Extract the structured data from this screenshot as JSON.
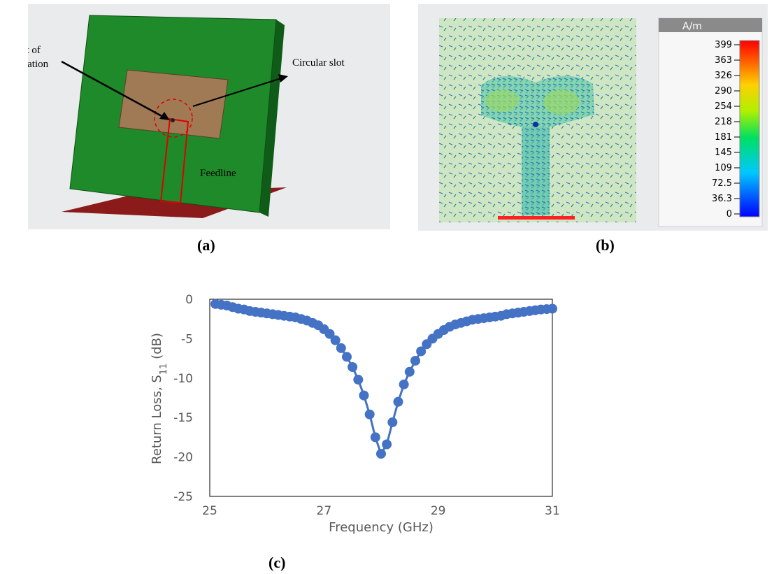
{
  "panel_a": {
    "annotations": {
      "excitation_line1": "Point of",
      "excitation_line2": "excitation",
      "slot": "Circular slot",
      "feedline": "Feedline"
    },
    "colors": {
      "substrate": "#1e8a2a",
      "patch": "#a07a55",
      "ground": "#8b1a1a",
      "outline": "#e00000"
    },
    "caption": "(a)"
  },
  "panel_b": {
    "colorbar": {
      "unit": "A/m",
      "ticks": [
        "399",
        "363",
        "326",
        "290",
        "254",
        "218",
        "181",
        "145",
        "109",
        "72.5",
        "36.3",
        "0"
      ]
    },
    "caption": "(b)"
  },
  "chart_data": {
    "type": "line",
    "xlabel": "Frequency (GHz)",
    "ylabel_main": "Return Loss, S",
    "ylabel_sub": "11",
    "ylabel_tail": " (dB)",
    "xlim": [
      25,
      31
    ],
    "ylim": [
      -25,
      0
    ],
    "xticks": [
      "25",
      "27",
      "29",
      "31"
    ],
    "yticks": [
      "0",
      "-5",
      "-10",
      "-15",
      "-20",
      "-25"
    ],
    "grid": "horizontal",
    "legend": "none",
    "series": [
      {
        "color": "#4472c4",
        "x": [
          25.1,
          25.2,
          25.3,
          25.4,
          25.5,
          25.6,
          25.7,
          25.8,
          25.9,
          26.0,
          26.1,
          26.2,
          26.3,
          26.4,
          26.5,
          26.6,
          26.7,
          26.8,
          26.9,
          27.0,
          27.1,
          27.2,
          27.3,
          27.4,
          27.5,
          27.6,
          27.7,
          27.8,
          27.9,
          28.0,
          28.1,
          28.2,
          28.3,
          28.4,
          28.5,
          28.6,
          28.7,
          28.8,
          28.9,
          29.0,
          29.1,
          29.2,
          29.3,
          29.4,
          29.5,
          29.6,
          29.7,
          29.8,
          29.9,
          30.0,
          30.1,
          30.2,
          30.3,
          30.4,
          30.5,
          30.6,
          30.7,
          30.8,
          30.9,
          31.0
        ],
        "y": [
          -0.6,
          -0.7,
          -0.8,
          -1.0,
          -1.2,
          -1.3,
          -1.5,
          -1.6,
          -1.7,
          -1.8,
          -1.9,
          -2.0,
          -2.1,
          -2.2,
          -2.3,
          -2.5,
          -2.7,
          -3.0,
          -3.3,
          -3.8,
          -4.4,
          -5.2,
          -6.2,
          -7.3,
          -8.6,
          -10.2,
          -12.2,
          -14.6,
          -17.5,
          -19.6,
          -18.4,
          -15.6,
          -13.0,
          -10.8,
          -9.2,
          -7.8,
          -6.6,
          -5.7,
          -5.0,
          -4.4,
          -3.9,
          -3.5,
          -3.2,
          -3.0,
          -2.8,
          -2.6,
          -2.5,
          -2.4,
          -2.3,
          -2.2,
          -2.1,
          -1.9,
          -1.8,
          -1.7,
          -1.6,
          -1.5,
          -1.4,
          -1.3,
          -1.25,
          -1.2
        ]
      }
    ],
    "caption": "(c)"
  }
}
